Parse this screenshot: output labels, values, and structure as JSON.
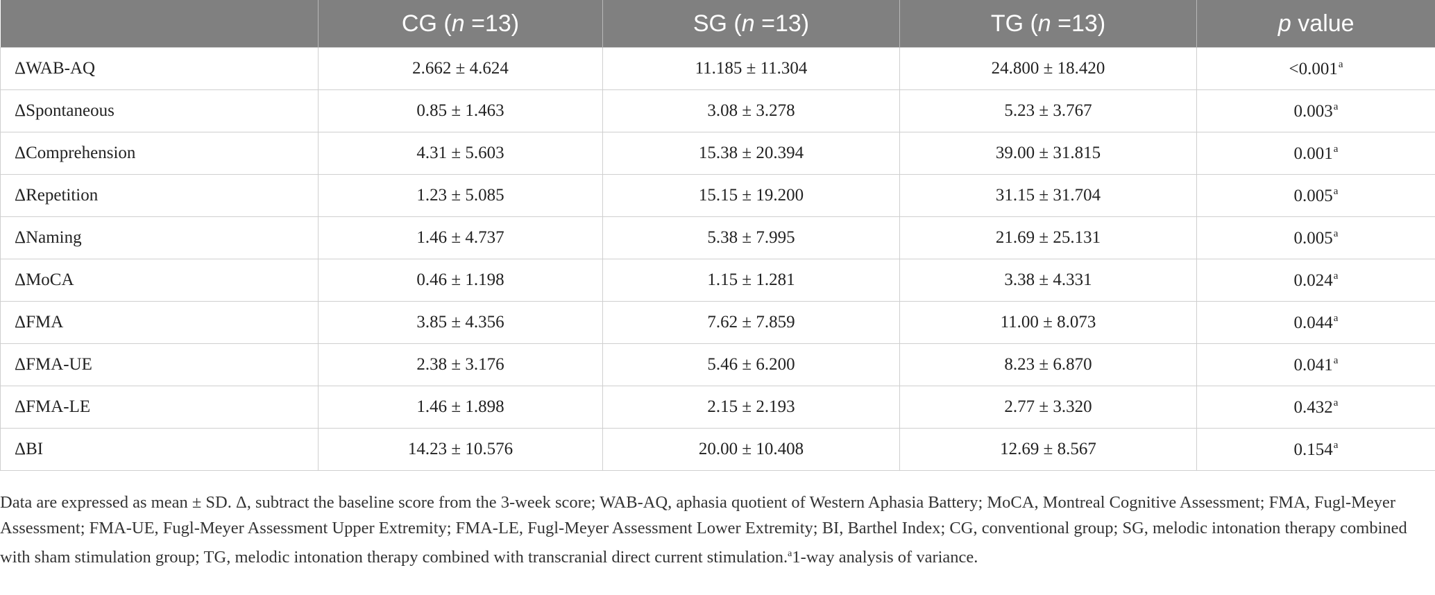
{
  "table": {
    "headers": [
      {
        "pre": "",
        "ital": "",
        "post": ""
      },
      {
        "pre": "CG (",
        "ital": "n",
        "post": " =13)"
      },
      {
        "pre": "SG (",
        "ital": "n",
        "post": " =13)"
      },
      {
        "pre": "TG (",
        "ital": "n",
        "post": " =13)"
      },
      {
        "pre": "",
        "ital": "p",
        "post": " value"
      }
    ],
    "rows": [
      {
        "label": "ΔWAB-AQ",
        "cg": "2.662 ± 4.624",
        "sg": "11.185 ± 11.304",
        "tg": "24.800 ± 18.420",
        "p": "<0.001",
        "sup": "a"
      },
      {
        "label": "ΔSpontaneous",
        "cg": "0.85 ± 1.463",
        "sg": "3.08 ± 3.278",
        "tg": "5.23 ± 3.767",
        "p": "0.003",
        "sup": "a"
      },
      {
        "label": "ΔComprehension",
        "cg": "4.31 ± 5.603",
        "sg": "15.38 ± 20.394",
        "tg": "39.00 ± 31.815",
        "p": "0.001",
        "sup": "a"
      },
      {
        "label": "ΔRepetition",
        "cg": "1.23 ± 5.085",
        "sg": "15.15 ± 19.200",
        "tg": "31.15 ± 31.704",
        "p": "0.005",
        "sup": "a"
      },
      {
        "label": "ΔNaming",
        "cg": "1.46 ± 4.737",
        "sg": "5.38 ± 7.995",
        "tg": "21.69 ± 25.131",
        "p": "0.005",
        "sup": "a"
      },
      {
        "label": "ΔMoCA",
        "cg": "0.46 ± 1.198",
        "sg": "1.15 ± 1.281",
        "tg": "3.38 ± 4.331",
        "p": "0.024",
        "sup": "a"
      },
      {
        "label": "ΔFMA",
        "cg": "3.85 ± 4.356",
        "sg": "7.62 ± 7.859",
        "tg": "11.00 ± 8.073",
        "p": "0.044",
        "sup": "a"
      },
      {
        "label": "ΔFMA-UE",
        "cg": "2.38 ± 3.176",
        "sg": "5.46 ± 6.200",
        "tg": "8.23 ± 6.870",
        "p": "0.041",
        "sup": "a"
      },
      {
        "label": "ΔFMA-LE",
        "cg": "1.46 ± 1.898",
        "sg": "2.15 ± 2.193",
        "tg": "2.77 ± 3.320",
        "p": "0.432",
        "sup": "a"
      },
      {
        "label": "ΔBI",
        "cg": "14.23 ± 10.576",
        "sg": "20.00 ± 10.408",
        "tg": "12.69 ± 8.567",
        "p": "0.154",
        "sup": "a"
      }
    ]
  },
  "footnote": {
    "text": "Data are expressed as mean ± SD. Δ, subtract the baseline score from the 3-week score; WAB-AQ, aphasia quotient of Western Aphasia Battery; MoCA, Montreal Cognitive Assessment; FMA, Fugl-Meyer Assessment; FMA-UE, Fugl-Meyer Assessment Upper Extremity; FMA-LE, Fugl-Meyer Assessment Lower Extremity; BI, Barthel Index; CG, conventional group; SG, melodic intonation therapy combined with sham stimulation group; TG, melodic intonation therapy combined with transcranial direct current stimulation.",
    "sup": "a",
    "tail": "1-way analysis of variance."
  },
  "colors": {
    "header_bg": "#808080",
    "header_text": "#ffffff",
    "grid": "#cfcfcf"
  }
}
